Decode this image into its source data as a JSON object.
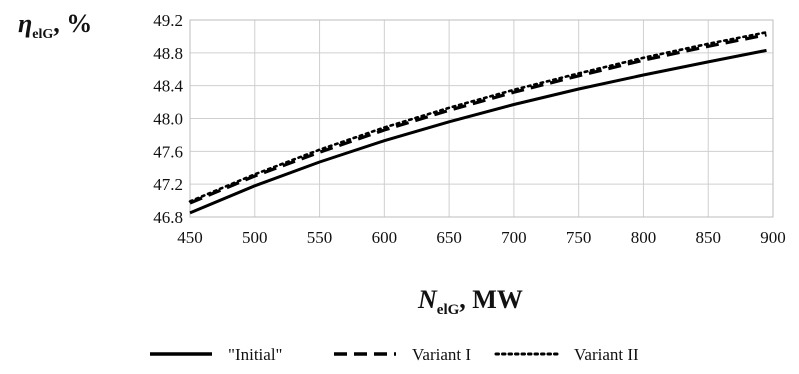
{
  "chart_data": {
    "type": "line",
    "xlabel": {
      "main": "N",
      "sub": "elG",
      "suffix": ", MW"
    },
    "ylabel": {
      "main": "η",
      "sub": "elG",
      "suffix": ", %"
    },
    "xlim": [
      450,
      900
    ],
    "ylim": [
      46.8,
      49.2
    ],
    "x_ticks": [
      450,
      500,
      550,
      600,
      650,
      700,
      750,
      800,
      850,
      900
    ],
    "y_ticks": [
      "46.8",
      "47.2",
      "47.6",
      "48.0",
      "48.4",
      "48.8",
      "49.2"
    ],
    "grid": true,
    "legend_position": "bottom",
    "x": [
      450,
      500,
      550,
      600,
      650,
      700,
      750,
      800,
      850,
      895
    ],
    "series": [
      {
        "name": "\"Initial\"",
        "style": "solid",
        "color": "#000000",
        "values": [
          46.85,
          47.18,
          47.47,
          47.73,
          47.96,
          48.17,
          48.36,
          48.53,
          48.69,
          48.83
        ]
      },
      {
        "name": "Variant I",
        "style": "dashed",
        "color": "#000000",
        "values": [
          46.97,
          47.3,
          47.59,
          47.86,
          48.1,
          48.32,
          48.52,
          48.71,
          48.88,
          49.02
        ]
      },
      {
        "name": "Variant II",
        "style": "dotted",
        "color": "#000000",
        "values": [
          46.99,
          47.32,
          47.62,
          47.89,
          48.13,
          48.35,
          48.55,
          48.74,
          48.91,
          49.05
        ]
      }
    ]
  }
}
